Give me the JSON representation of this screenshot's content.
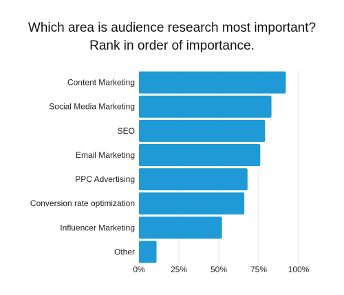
{
  "chart_data": {
    "type": "bar",
    "orientation": "horizontal",
    "title_lines": [
      "Which area is audience research most important?",
      "Rank in order of importance."
    ],
    "categories": [
      "Content Marketing",
      "Social Media Marketing",
      "SEO",
      "Email Marketing",
      "PPC Advertising",
      "Conversion rate optimization",
      "Influencer Marketing",
      "Other"
    ],
    "values": [
      92,
      83,
      79,
      76,
      68,
      66,
      52,
      11
    ],
    "xlim": [
      0,
      100
    ],
    "xticks": [
      "0%",
      "25%",
      "50%",
      "75%",
      "100%"
    ],
    "xtick_values": [
      0,
      25,
      50,
      75,
      100
    ],
    "grid": "vertical",
    "bar_color": "#1f9ad6",
    "grid_color": "#e6e6e6"
  }
}
